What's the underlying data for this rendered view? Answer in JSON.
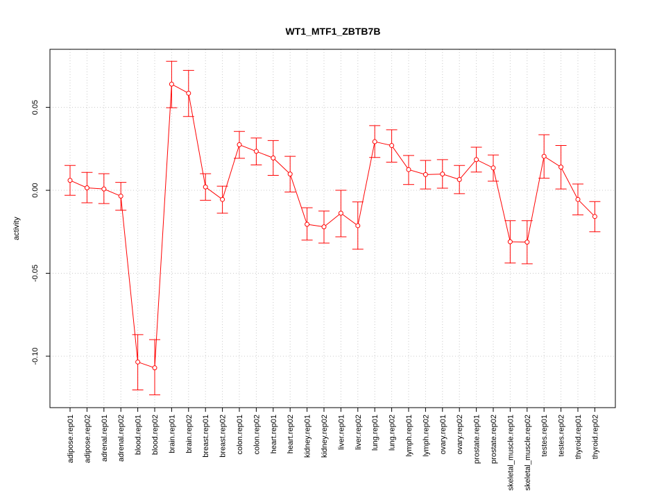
{
  "chart_data": {
    "type": "line",
    "title": "WT1_MTF1_ZBTB7B",
    "xlabel": "",
    "ylabel": "activity",
    "ylim": [
      -0.131,
      0.085
    ],
    "yticks": [
      -0.1,
      -0.05,
      0.0,
      0.05
    ],
    "ytick_labels": [
      "-0.10",
      "-0.05",
      "0.00",
      "0.05"
    ],
    "grid": true,
    "series_color": "#ff0000",
    "grid_color": "#c8c8c8",
    "categories": [
      "adipose.rep01",
      "adipose.rep02",
      "adrenal.rep01",
      "adrenal.rep02",
      "blood.rep01",
      "blood.rep02",
      "brain.rep01",
      "brain.rep02",
      "breast.rep01",
      "breast.rep02",
      "colon.rep01",
      "colon.rep02",
      "heart.rep01",
      "heart.rep02",
      "kidney.rep01",
      "kidney.rep02",
      "liver.rep01",
      "liver.rep02",
      "lung.rep01",
      "lung.rep02",
      "lymph.rep01",
      "lymph.rep02",
      "ovary.rep01",
      "ovary.rep02",
      "prostate.rep01",
      "prostate.rep02",
      "skeletal_muscle.rep01",
      "skeletal_muscle.rep02",
      "testes.rep01",
      "testes.rep02",
      "thyroid.rep01",
      "thyroid.rep02"
    ],
    "values": [
      0.006,
      0.0015,
      0.0008,
      -0.0035,
      -0.1035,
      -0.107,
      0.064,
      0.0585,
      0.002,
      -0.0055,
      0.0275,
      0.0235,
      0.0195,
      0.0098,
      -0.0205,
      -0.022,
      -0.0138,
      -0.0213,
      0.0293,
      0.027,
      0.0125,
      0.0095,
      0.0098,
      0.0065,
      0.0185,
      0.0135,
      -0.031,
      -0.0312,
      0.0205,
      0.014,
      -0.0055,
      -0.0158
    ],
    "upper": [
      0.015,
      0.0108,
      0.01,
      0.0048,
      -0.087,
      -0.09,
      0.0778,
      0.0723,
      0.01,
      0.0025,
      0.0355,
      0.0315,
      0.03,
      0.0205,
      -0.0105,
      -0.0125,
      0.0,
      -0.007,
      0.039,
      0.0365,
      0.021,
      0.018,
      0.0185,
      0.015,
      0.026,
      0.0213,
      -0.0183,
      -0.0183,
      0.0335,
      0.027,
      0.0038,
      -0.0068
    ],
    "lower": [
      -0.003,
      -0.0075,
      -0.008,
      -0.012,
      -0.1203,
      -0.1233,
      0.0498,
      0.0445,
      -0.006,
      -0.0138,
      0.0193,
      0.0153,
      0.009,
      -0.001,
      -0.03,
      -0.0318,
      -0.028,
      -0.0355,
      0.0198,
      0.017,
      0.0035,
      0.0008,
      0.0013,
      -0.002,
      0.011,
      0.0055,
      -0.0438,
      -0.0443,
      0.0073,
      0.0008,
      -0.0148,
      -0.025
    ]
  }
}
